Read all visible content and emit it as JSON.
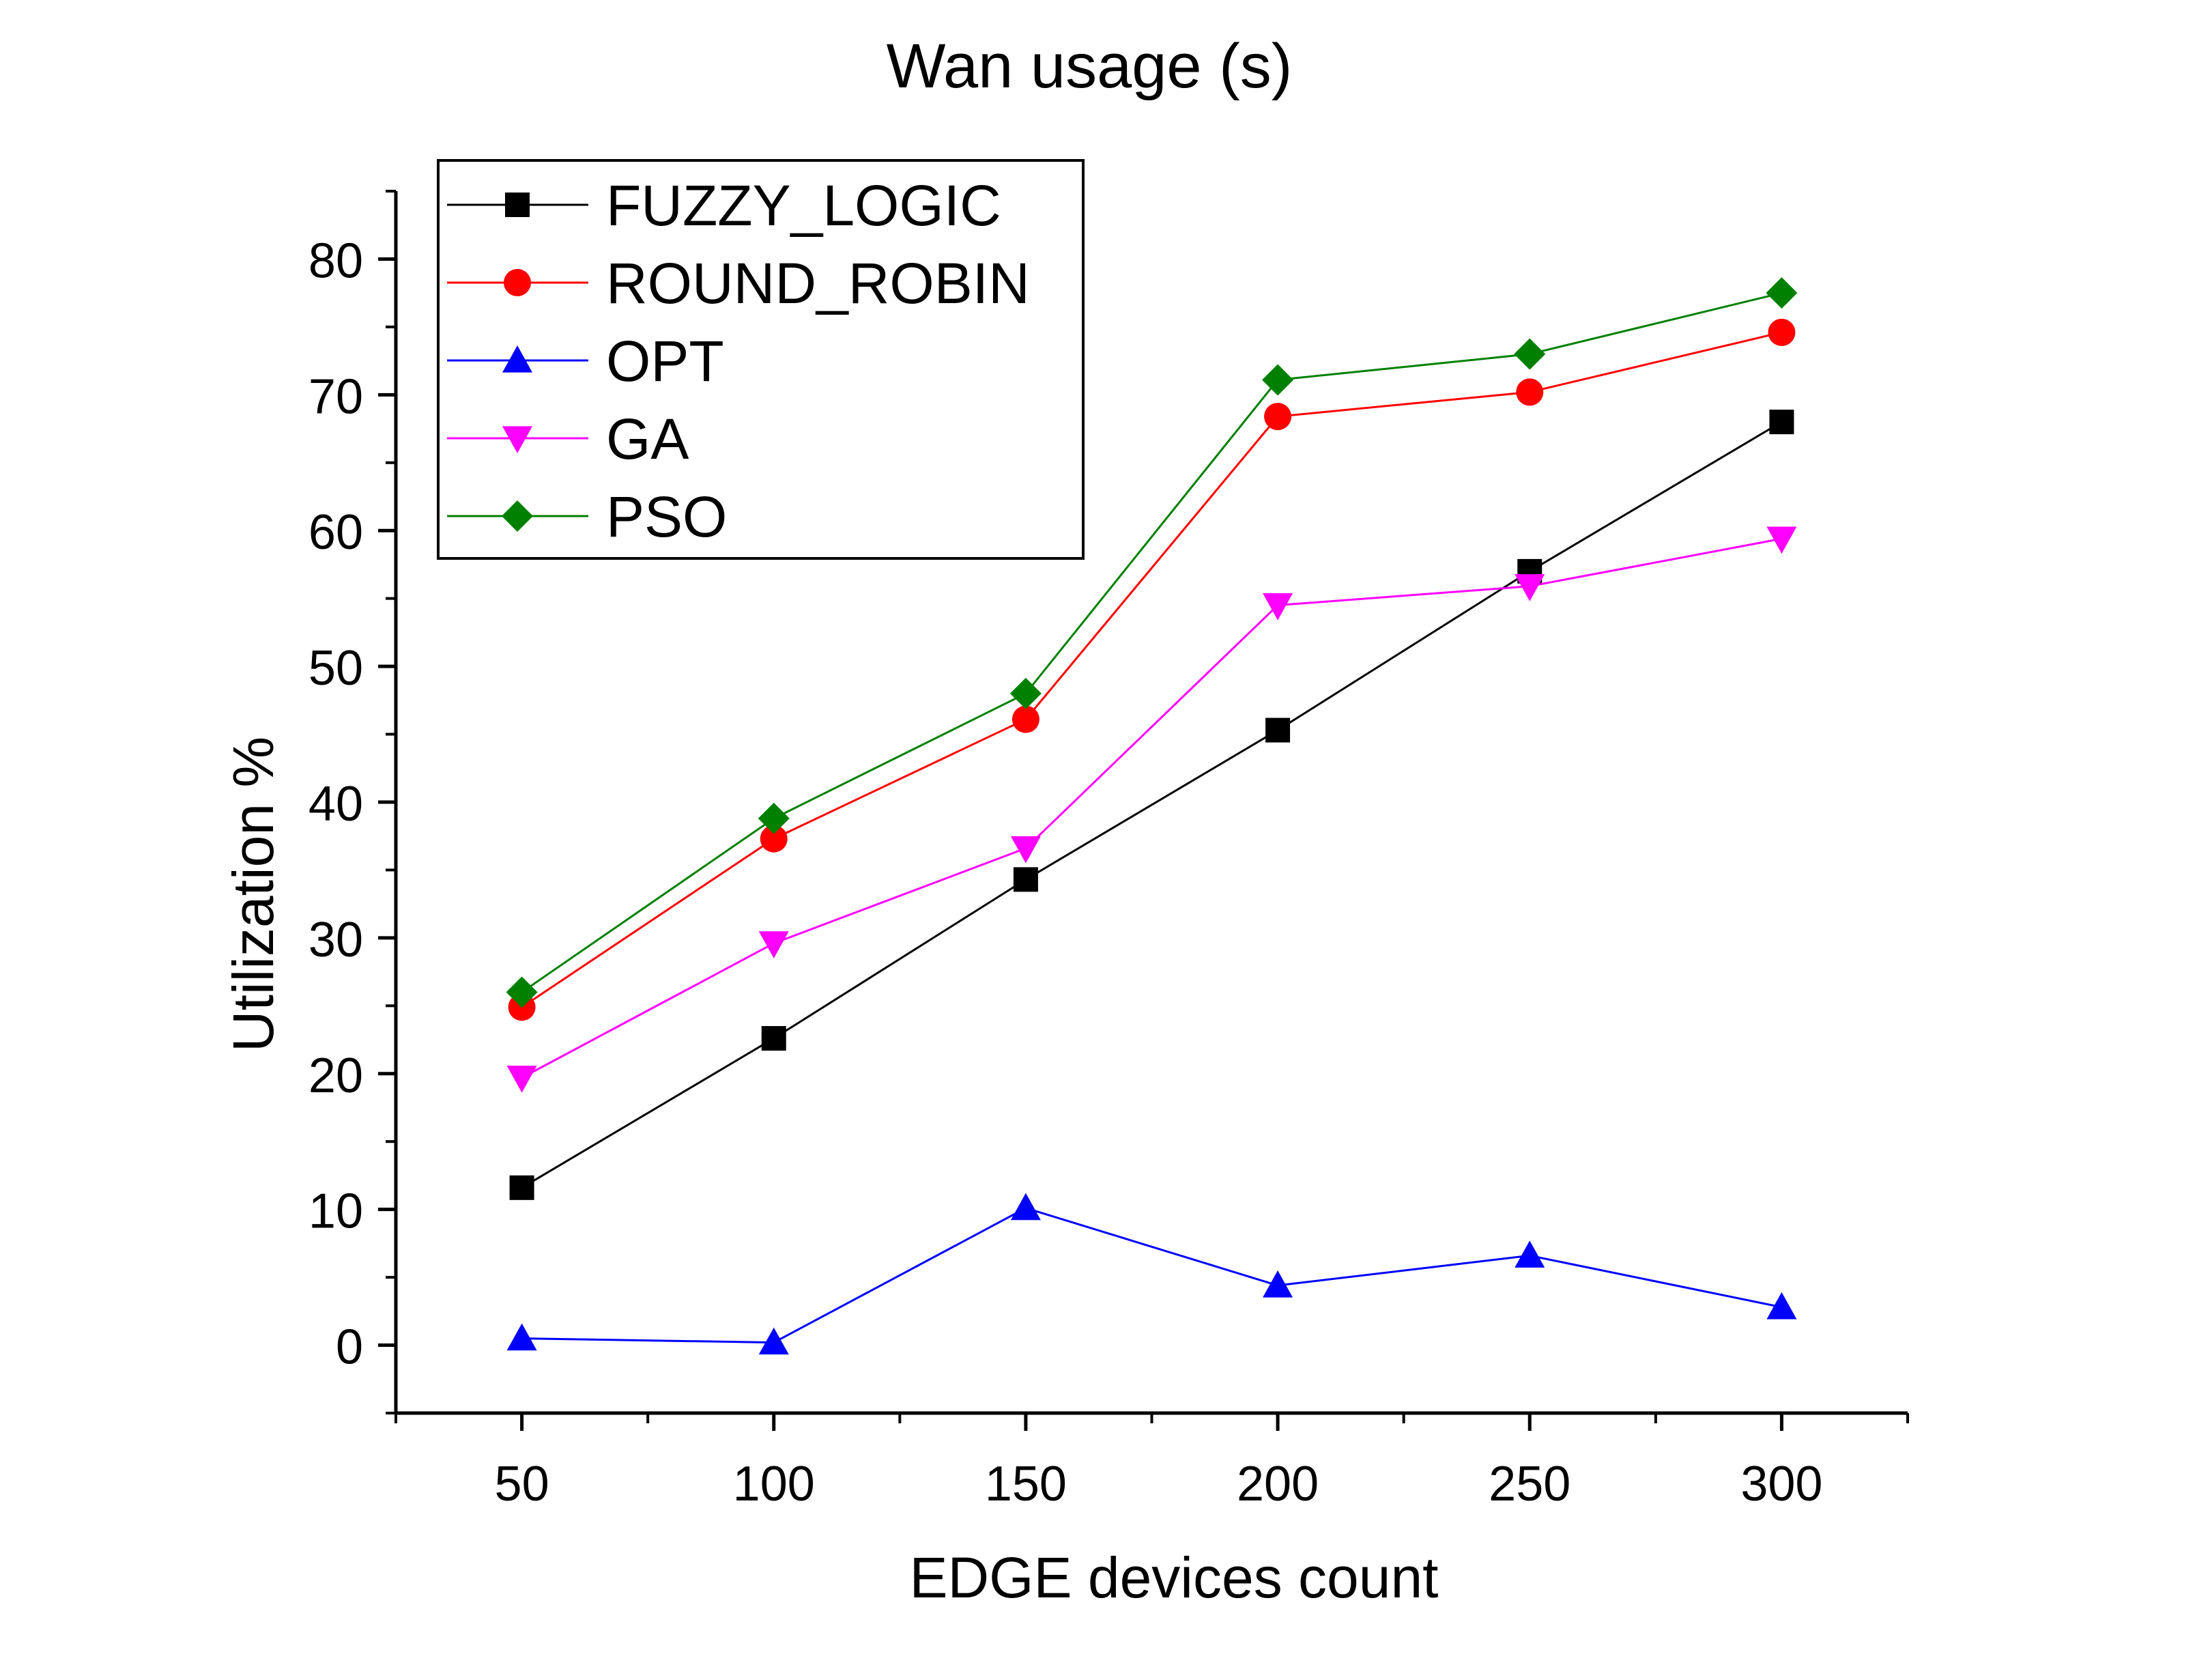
{
  "chart_data": {
    "type": "line",
    "title": "Wan usage (s)",
    "xlabel": "EDGE devices count",
    "ylabel": "Utilization %",
    "x": [
      50,
      100,
      150,
      200,
      250,
      300
    ],
    "xlim": [
      25,
      325
    ],
    "ylim": [
      -5,
      85
    ],
    "xticks": [
      "50",
      "100",
      "150",
      "200",
      "250",
      "300"
    ],
    "yticks": [
      "0",
      "10",
      "20",
      "30",
      "40",
      "50",
      "60",
      "70",
      "80"
    ],
    "grid": false,
    "legend_position": "top-left",
    "series": [
      {
        "name": "FUZZY_LOGIC",
        "color": "#000000",
        "marker": "square",
        "values": [
          11.6,
          22.6,
          34.3,
          45.3,
          57.0,
          68.0
        ]
      },
      {
        "name": "ROUND_ROBIN",
        "color": "#ff0000",
        "marker": "circle",
        "values": [
          24.9,
          37.3,
          46.1,
          68.4,
          70.2,
          74.6
        ]
      },
      {
        "name": "OPT",
        "color": "#0000ff",
        "marker": "triangle-up",
        "values": [
          0.5,
          0.2,
          10.1,
          4.4,
          6.6,
          2.8
        ]
      },
      {
        "name": "GA",
        "color": "#ff00ff",
        "marker": "triangle-down",
        "values": [
          19.7,
          29.6,
          36.6,
          54.5,
          55.9,
          59.4
        ]
      },
      {
        "name": "PSO",
        "color": "#008000",
        "marker": "diamond",
        "values": [
          26.0,
          38.8,
          48.0,
          71.1,
          73.0,
          77.5
        ]
      }
    ]
  }
}
